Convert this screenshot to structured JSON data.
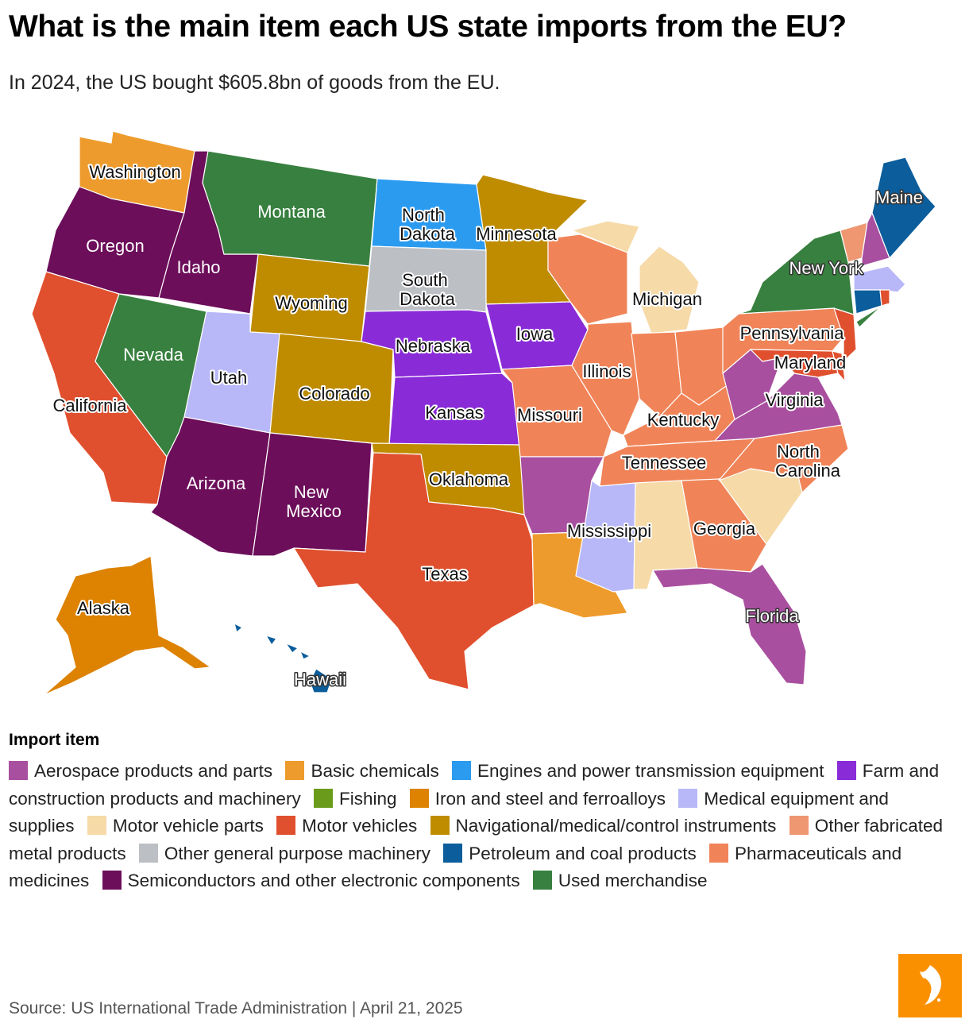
{
  "title": "What is the main item each US state imports from the EU?",
  "subtitle": "In 2024, the US bought $605.8bn of goods from the EU.",
  "legend": {
    "title": "Import item",
    "items": [
      {
        "label": "Aerospace products and parts",
        "color": "#a94f9f"
      },
      {
        "label": "Basic chemicals",
        "color": "#ee9b2d"
      },
      {
        "label": "Engines and power transmission equipment",
        "color": "#2b9bf0"
      },
      {
        "label": "Farm and construction products and machinery",
        "color": "#8a2bd8"
      },
      {
        "label": "Fishing",
        "color": "#6a9b1b"
      },
      {
        "label": "Iron and steel and ferroalloys",
        "color": "#dd8201"
      },
      {
        "label": "Medical equipment and supplies",
        "color": "#b8b8f8"
      },
      {
        "label": "Motor vehicle parts",
        "color": "#f6daa8"
      },
      {
        "label": "Motor vehicles",
        "color": "#e0502e"
      },
      {
        "label": "Navigational/medical/control instruments",
        "color": "#bf8c00"
      },
      {
        "label": "Other fabricated metal products",
        "color": "#ee9771"
      },
      {
        "label": "Other general purpose machinery",
        "color": "#bcbfc4"
      },
      {
        "label": "Petroleum and coal products",
        "color": "#0b5d9b"
      },
      {
        "label": "Pharmaceuticals and medicines",
        "color": "#f08458"
      },
      {
        "label": "Semiconductors and other electronic components",
        "color": "#6c0e5a"
      },
      {
        "label": "Used merchandise",
        "color": "#38803f"
      }
    ]
  },
  "states": {
    "washington": {
      "name": "Washington",
      "color": "#ee9b2d"
    },
    "oregon": {
      "name": "Oregon",
      "color": "#6c0e5a"
    },
    "california": {
      "name": "California",
      "color": "#e0502e"
    },
    "idaho": {
      "name": "Idaho",
      "color": "#6c0e5a"
    },
    "nevada": {
      "name": "Nevada",
      "color": "#38803f"
    },
    "montana": {
      "name": "Montana",
      "color": "#38803f"
    },
    "wyoming": {
      "name": "Wyoming",
      "color": "#bf8c00"
    },
    "utah": {
      "name": "Utah",
      "color": "#b8b8f8"
    },
    "arizona": {
      "name": "Arizona",
      "color": "#6c0e5a"
    },
    "colorado": {
      "name": "Colorado",
      "color": "#bf8c00"
    },
    "new_mexico": {
      "name": "New Mexico",
      "color": "#6c0e5a"
    },
    "north_dakota": {
      "name": "North Dakota",
      "color": "#2b9bf0"
    },
    "south_dakota": {
      "name": "South Dakota",
      "color": "#bcbfc4"
    },
    "nebraska": {
      "name": "Nebraska",
      "color": "#8a2bd8"
    },
    "kansas": {
      "name": "Kansas",
      "color": "#8a2bd8"
    },
    "oklahoma": {
      "name": "Oklahoma",
      "color": "#bf8c00"
    },
    "texas": {
      "name": "Texas",
      "color": "#e0502e"
    },
    "minnesota": {
      "name": "Minnesota",
      "color": "#bf8c00"
    },
    "iowa": {
      "name": "Iowa",
      "color": "#8a2bd8"
    },
    "missouri": {
      "name": "Missouri",
      "color": "#f08458"
    },
    "arkansas": {
      "name": "",
      "color": "#a94f9f"
    },
    "louisiana": {
      "name": "",
      "color": "#ee9b2d"
    },
    "wisconsin": {
      "name": "",
      "color": "#f08458"
    },
    "illinois": {
      "name": "Illinois",
      "color": "#f08458"
    },
    "michigan": {
      "name": "Michigan",
      "color": "#f6daa8"
    },
    "indiana": {
      "name": "",
      "color": "#f08458"
    },
    "ohio": {
      "name": "",
      "color": "#f08458"
    },
    "kentucky": {
      "name": "Kentucky",
      "color": "#f08458"
    },
    "tennessee": {
      "name": "Tennessee",
      "color": "#f08458"
    },
    "mississippi": {
      "name": "Mississippi",
      "color": "#b8b8f8"
    },
    "alabama": {
      "name": "",
      "color": "#f6daa8"
    },
    "georgia": {
      "name": "Georgia",
      "color": "#f08458"
    },
    "florida": {
      "name": "Florida",
      "color": "#a94f9f"
    },
    "south_carolina": {
      "name": "",
      "color": "#f6daa8"
    },
    "north_carolina": {
      "name": "North Carolina",
      "color": "#f08458"
    },
    "virginia": {
      "name": "Virginia",
      "color": "#a94f9f"
    },
    "west_virginia": {
      "name": "",
      "color": "#a94f9f"
    },
    "pennsylvania": {
      "name": "Pennsylvania",
      "color": "#f08458"
    },
    "maryland": {
      "name": "Maryland",
      "color": "#e0502e"
    },
    "delaware": {
      "name": "",
      "color": "#e0502e"
    },
    "new_jersey": {
      "name": "",
      "color": "#e0502e"
    },
    "new_york": {
      "name": "New York",
      "color": "#38803f"
    },
    "vermont": {
      "name": "",
      "color": "#ee9771"
    },
    "new_hampshire": {
      "name": "",
      "color": "#a94f9f"
    },
    "maine": {
      "name": "Maine",
      "color": "#0b5d9b"
    },
    "massachusetts": {
      "name": "",
      "color": "#b8b8f8"
    },
    "connecticut": {
      "name": "",
      "color": "#0b5d9b"
    },
    "rhode_island": {
      "name": "",
      "color": "#e0502e"
    },
    "alaska": {
      "name": "Alaska",
      "color": "#dd8201"
    },
    "hawaii": {
      "name": "Hawaii",
      "color": "#0b5d9b"
    }
  },
  "source": "Source: US International Trade Administration | April 21, 2025"
}
